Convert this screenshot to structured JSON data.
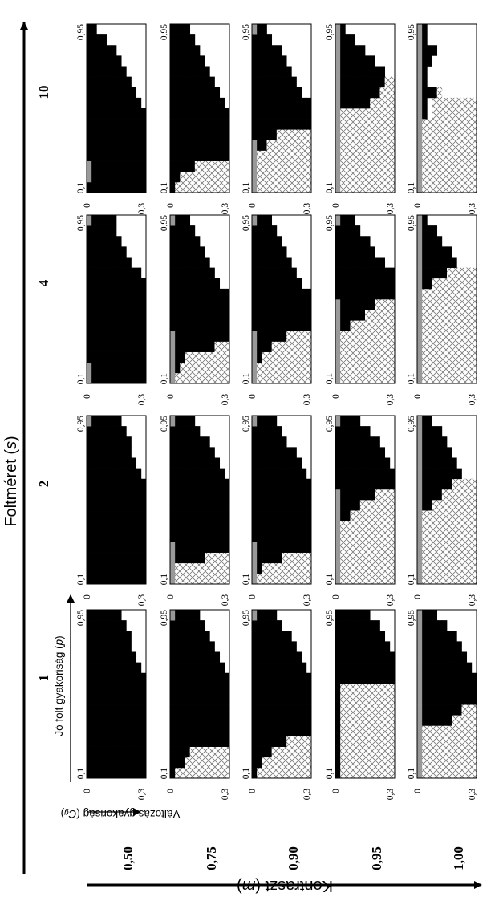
{
  "figure": {
    "main_axis_title": "Foltméret",
    "main_axis_var": "s",
    "contrast_axis_title": "Kontraszt",
    "contrast_axis_var": "m",
    "inner_x_title": "Jó folt gyakoriság",
    "inner_x_var": "p",
    "inner_y_title": "Változás gyakoriság",
    "inner_y_var": "C",
    "inner_y_sub": "g",
    "panel_x_ticks": [
      "0,1",
      "0,95"
    ],
    "panel_y_ticks": [
      "0",
      "0,3"
    ]
  },
  "chart_data": {
    "type": "heatmap",
    "column_labels": [
      "1",
      "2",
      "4",
      "10"
    ],
    "row_labels": [
      "0,50",
      "0,75",
      "0,90",
      "0,95",
      "1,00"
    ],
    "legend": "",
    "cell_codes": {
      "B": "black",
      "G": "gray",
      "X": "hatched",
      "W": "white"
    },
    "panels": [
      [
        [
          "BBBBBBBBBBBB",
          "BBBBBBBBBBBB",
          "BBBBBBBBBBBB",
          "BBBBBBBBBBBB",
          "BBBBBBBBBBBB",
          "BBBBBBBBBBBB",
          "BBBBBBBBBBBB",
          "BBBBBBBBBBBB",
          "BBBBBBBBBBBB",
          "BBBBBBBBBBBB",
          "BBBBBBBBBBBW",
          "BBBBBBBBBBWW",
          "BBBBBBBBBWWW",
          "BBBBBBBBBWWW",
          "BBBBBBBBWWWW",
          "BBBBBBBWWWWW"
        ],
        [
          "BBBBBBBBBBBB",
          "BBBBBBBBBBBB",
          "BBBBBBBBBBBB",
          "BBBBBBBBBBBB",
          "BBBBBBBBBBBB",
          "BBBBBBBBBBBB",
          "BBBBBBBBBBBB",
          "BBBBBBBBBBBB",
          "BBBBBBBBBBBB",
          "BBBBBBBBBBBB",
          "BBBBBBBBBBBW",
          "BBBBBBBBBBWW",
          "BBBBBBBBBWWW",
          "BBBBBBBBBWWW",
          "BBBBBBBBWWWW",
          "GBBBBBBWWWWW"
        ],
        [
          "GBBBBBBBBBBB",
          "GBBBBBBBBBBB",
          "BBBBBBBBBBBB",
          "BBBBBBBBBBBB",
          "BBBBBBBBBBBB",
          "BBBBBBBBBBBB",
          "BBBBBBBBBBBB",
          "BBBBBBBBBBBB",
          "BBBBBBBBBBBB",
          "BBBBBBBBBBBB",
          "BBBBBBBBBBBW",
          "BBBBBBBBBWWW",
          "BBBBBBBBWWWW",
          "BBBBBBBWWWWW",
          "BBBBBBWWWWWW",
          "GBBBBBWWWWWW"
        ],
        [
          "BBBBBBBBBBBB",
          "GBBBBBBBBBBB",
          "GBBBBBBBBBBB",
          "BBBBBBBBBBBB",
          "BBBBBBBBBBBB",
          "BBBBBBBBBBBB",
          "BBBBBBBBBBBB",
          "BBBBBBBBBBBB",
          "BBBBBBBBBBBW",
          "BBBBBBBBBBWW",
          "BBBBBBBBBWWW",
          "BBBBBBBBWWWW",
          "BBBBBBBWWWWW",
          "BBBBBBWWWWWW",
          "BBBBWWWWWWWW",
          "BBWWWWWWWWWW"
        ]
      ],
      [
        [
          "BXXXXXXXXXXX",
          "BBBXXXXXXXXX",
          "BBBBXXXXXXXX",
          "BBBBBBBBBBBB",
          "BBBBBBBBBBBB",
          "BBBBBBBBBBBB",
          "BBBBBBBBBBBB",
          "BBBBBBBBBBBB",
          "BBBBBBBBBBBB",
          "BBBBBBBBBBBB",
          "BBBBBBBBBBBW",
          "BBBBBBBBBBWW",
          "BBBBBBBBBWWW",
          "BBBBBBBBWWWW",
          "BBBBBBBWWWWW",
          "GBBBBBWWWWWW"
        ],
        [
          "GXXXXXXXXXXX",
          "GXXXXXXXXXXX",
          "GBBBBBBXXXXX",
          "GBBBBBBBBBBB",
          "BBBBBBBBBBBB",
          "BBBBBBBBBBBB",
          "BBBBBBBBBBBB",
          "BBBBBBBBBBBB",
          "BBBBBBBBBBBB",
          "BBBBBBBBBBBB",
          "BBBBBBBBBBBW",
          "BBBBBBBBBBWW",
          "BBBBBBBBBWWW",
          "BBBBBBBBWWWW",
          "BBBBBBWWWWWW",
          "GBBBBWWWWWWW"
        ],
        [
          "GXXXXXXXXXXX",
          "GBXXXXXXXXXX",
          "GBBXXXXXXXXX",
          "GBBBBBBBBXXX",
          "GBBBBBBBBBBB",
          "BBBBBBBBBBBB",
          "BBBBBBBBBBBB",
          "BBBBBBBBBBBB",
          "BBBBBBBBBBBB",
          "BBBBBBBBBBWW",
          "BBBBBBBBBWWW",
          "BBBBBBBBWWWW",
          "BBBBBBBWWWWW",
          "BBBBBBWWWWWW",
          "BBBBBWWWWWWW",
          "GBBBWWWWWWWW"
        ],
        [
          "BXXXXXXXXXXX",
          "BBXXXXXXXXXX",
          "BBBBBXXXXXXX",
          "BBBBBBBBBBBB",
          "BBBBBBBBBBBB",
          "BBBBBBBBBBBB",
          "BBBBBBBBBBBB",
          "BBBBBBBBBBBB",
          "BBBBBBBBBBBW",
          "BBBBBBBBBBWW",
          "BBBBBBBBBWWW",
          "BBBBBBBBWWWW",
          "BBBBBBBWWWWW",
          "BBBBBBWWWWWW",
          "BBBBBWWWWWWW",
          "BBBBWWWWWWWW"
        ]
      ],
      [
        [
          "BXXXXXXXXXXX",
          "BBXXXXXXXXXX",
          "BBBBXXXXXXXX",
          "BBBBBBBXXXXX",
          "BBBBBBBBBBBB",
          "BBBBBBBBBBBB",
          "BBBBBBBBBBBB",
          "BBBBBBBBBBBB",
          "BBBBBBBBBBBB",
          "BBBBBBBBBBBB",
          "BBBBBBBBBBBW",
          "BBBBBBBBBBWW",
          "BBBBBBBBBWWW",
          "BBBBBBBBWWWW",
          "BBBBBBWWWWWW",
          "GBBBBWWWWWWW"
        ],
        [
          "GXXXXXXXXXXX",
          "GBXXXXXXXXXX",
          "GBBBBBXXXXXX",
          "GBBBBBBBBBBB",
          "BBBBBBBBBBBB",
          "BBBBBBBBBBBB",
          "BBBBBBBBBBBB",
          "BBBBBBBBBBBB",
          "BBBBBBBBBBBB",
          "BBBBBBBBBBBB",
          "BBBBBBBBBBBW",
          "BBBBBBBBBBWW",
          "BBBBBBBBBWWW",
          "BBBBBBBWWWWW",
          "BBBBBBWWWWWW",
          "GBBBBWWWWWWW"
        ],
        [
          "GXXXXXXXXXXX",
          "GXXXXXXXXXXX",
          "GBXXXXXXXXXX",
          "GBBBXXXXXXXX",
          "GBBBBBBXXXXX",
          "BBBBBBBBBBBB",
          "BBBBBBBBBBBB",
          "BBBBBBBBBBBB",
          "BBBBBBBBBBBB",
          "BBBBBBBBBBWW",
          "BBBBBBBBBWWW",
          "BBBBBBBBWWWW",
          "BBBBBBBWWWWW",
          "BBBBBBWWWWWW",
          "BBBBBWWWWWWW",
          "GBBBWWWWWWWW"
        ],
        [
          "GXXXXXXXXXXX",
          "GXXXXXXXXXXX",
          "GXXXXXXXXXXX",
          "GXXXXXXXXXXX",
          "GBBXXXXXXXXX",
          "BBBBBXXXXXXX",
          "BBBBBBBBBBBB",
          "BBBBBBBBBBBB",
          "BBBBBBBBBBBB",
          "BBBBBBBBBBWW",
          "BBBBBBBBBWWW",
          "BBBBBBBBWWWW",
          "BBBBBBBWWWWW",
          "BBBBBBWWWWWW",
          "BBBBWWWWWWWW",
          "GBBWWWWWWWWW"
        ]
      ],
      [
        [
          "BXXXXXXXXXXX",
          "BXXXXXXXXXXX",
          "BXXXXXXXXXXX",
          "BXXXXXXXXXXX",
          "BXXXXXXXXXXX",
          "BXXXXXXXXXXX",
          "BXXXXXXXXXXX",
          "BXXXXXXXXXXX",
          "BXXXXXXXXXXX",
          "BBBBBBBBBBBB",
          "BBBBBBBBBBBB",
          "BBBBBBBBBBBB",
          "BBBBBBBBBBBW",
          "BBBBBBBBBBWW",
          "BBBBBBBBBWWW",
          "BBBBBBBWWWWW"
        ],
        [
          "GXXXXXXXXXXX",
          "GXXXXXXXXXXX",
          "GXXXXXXXXXXX",
          "GXXXXXXXXXXX",
          "GXXXXXXXXXXX",
          "GXXXXXXXXXXX",
          "GBBXXXXXXXXX",
          "GBBBBXXXXXXX",
          "GBBBBBBBXXXX",
          "BBBBBBBBBBBB",
          "BBBBBBBBBBBB",
          "BBBBBBBBBBBW",
          "BBBBBBBBBBWW",
          "BBBBBBBBBWWW",
          "BBBBBBBWWWWW",
          "GBBBBWWWWWWW"
        ],
        [
          "GXXXXXXXXXXX",
          "GXXXXXXXXXXX",
          "GXXXXXXXXXXX",
          "GXXXXXXXXXXX",
          "GXXXXXXXXXXX",
          "GBBXXXXXXXXX",
          "GBBBBBXXXXXX",
          "GBBBBBBBXXXX",
          "BBBBBBBBBBBB",
          "BBBBBBBBBBBB",
          "BBBBBBBBBBBB",
          "BBBBBBBBBBWW",
          "BBBBBBBBWWWW",
          "BBBBBBBWWWWW",
          "BBBBBWWWWWWW",
          "GBBBWWWWWWWW"
        ],
        [
          "GXXXXXXXXXXX",
          "GXXXXXXXXXXX",
          "GXXXXXXXXXXX",
          "GXXXXXXXXXXX",
          "GXXXXXXXXXXX",
          "GXXXXXXXXXXX",
          "GXXXXXXXXXXX",
          "GXXXXXXXXXXX",
          "GBBBBBBXXXXX",
          "GBBBBBBBBXXX",
          "GBBBBBBBBBXX",
          "GBBBBBBBBBWW",
          "GBBBBBBBWWWW",
          "GBBBBBWWWWWW",
          "GBBBWWWWWWWW",
          "GBWWWWWWWWWW"
        ]
      ],
      [
        [
          "GXXXXXXXXXXX",
          "GXXXXXXXXXXX",
          "GXXXXXXXXXXX",
          "GXXXXXXXXXXX",
          "GXXXXXXXXXXX",
          "GBBBBBBXXXXX",
          "GBBBBBBBBXXX",
          "GBBBBBBBBBBB",
          "GBBBBBBBBBBB",
          "GBBBBBBBBBBB",
          "GBBBBBBBBBBW",
          "GBBBBBBBBBWW",
          "GBBBBBBBBWWW",
          "GBBBBBBBWWWW",
          "GBBBBBWWWWWW",
          "GBBBWWWWWWWW"
        ],
        [
          "GXXXXXXXXXXX",
          "GXXXXXXXXXXX",
          "GXXXXXXXXXXX",
          "GXXXXXXXXXXX",
          "GXXXXXXXXXXX",
          "GXXXXXXXXXXX",
          "GXXXXXXXXXXX",
          "GBBXXXXXXXXX",
          "GBBBBXXXXXXX",
          "GBBBBBBXXXXX",
          "GBBBBBBBBWWW",
          "GBBBBBBBWWWW",
          "GBBBBBBWWWWW",
          "GBBBBBWWWWWW",
          "GBBBBWWWWWWW",
          "GBBWWWWWWWWW"
        ],
        [
          "GXXXXXXXXXXX",
          "GXXXXXXXXXXX",
          "GXXXXXXXXXXX",
          "GXXXXXXXXXXX",
          "GXXXXXXXXXXX",
          "GXXXXXXXXXXX",
          "GXXXXXXXXXXX",
          "GXXXXXXXXXXX",
          "GXXXXXXXXXXX",
          "GBBXXXXXXXXX",
          "GBBBBBXXXXXX",
          "GBBBBBBBWWWW",
          "GBBBBBBWWWWW",
          "GBBBBWWWWWWW",
          "GBBBWWWWWWWW",
          "GBWWWWWWWWWW"
        ],
        [
          "GXXXXXXXXXXX",
          "GXXXXXXXXXXX",
          "GXXXXXXXXXXX",
          "GXXXXXXXXXXX",
          "GXXXXXXXXXXX",
          "GXXXXXXXXXXX",
          "GXXXXXXXXXXX",
          "GBWXXXXXXXXX",
          "GBWXXXXXXXXX",
          "GBBBXWWWWWWW",
          "GBWWWWWWWWWW",
          "GBWWWWWWWWWW",
          "GBBWWWWWWWWW",
          "GBBBWWWWWWWW",
          "GBWWWWWWWWWW",
          "GBWWWWWWWWWW"
        ]
      ]
    ]
  }
}
